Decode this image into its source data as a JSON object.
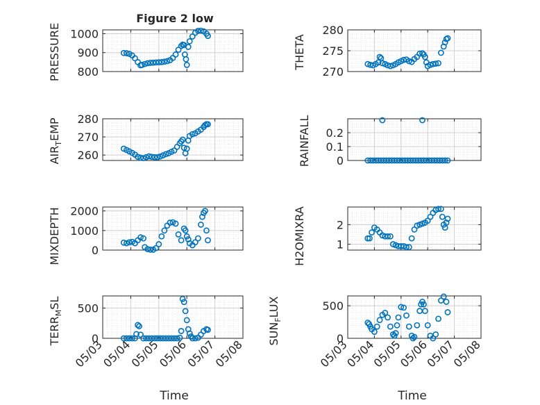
{
  "figure_title": "Figure 2 low",
  "xlabel": "Time",
  "x_tick_labels": [
    "05/03",
    "05/04",
    "05/05",
    "05/06",
    "05/07",
    "05/08"
  ],
  "colors": {
    "marker": "#0072BD",
    "axis": "#262626",
    "grid": "#dddddd"
  },
  "chart_data": [
    {
      "type": "scatter",
      "title": "Figure 2 low",
      "ylabel": "PRESSURE",
      "xlabel": "",
      "xlim": [
        0,
        5
      ],
      "ylim": [
        800,
        1020
      ],
      "yticks": [
        800,
        900,
        1000
      ],
      "grid": true,
      "minor_grid": true,
      "x": [
        0.75,
        0.85,
        0.95,
        1.05,
        1.15,
        1.25,
        1.35,
        1.4,
        1.5,
        1.6,
        1.7,
        1.8,
        1.9,
        2.0,
        2.1,
        2.2,
        2.3,
        2.4,
        2.5,
        2.6,
        2.7,
        2.8,
        2.85,
        2.9,
        2.93,
        2.97,
        3.0,
        3.05,
        3.1,
        3.2,
        3.3,
        3.4,
        3.5,
        3.6,
        3.7,
        3.75
      ],
      "y": [
        898,
        897,
        893,
        885,
        870,
        850,
        833,
        835,
        840,
        844,
        846,
        847,
        848,
        849,
        850,
        852,
        855,
        860,
        872,
        890,
        915,
        935,
        942,
        940,
        890,
        865,
        835,
        930,
        960,
        985,
        1005,
        1015,
        1016,
        1012,
        1000,
        988
      ]
    },
    {
      "type": "scatter",
      "title": "",
      "ylabel": "THETA",
      "xlabel": "",
      "xlim": [
        0,
        5
      ],
      "ylim": [
        270,
        280
      ],
      "yticks": [
        270,
        275,
        280
      ],
      "grid": true,
      "minor_grid": true,
      "x": [
        0.75,
        0.85,
        0.95,
        1.05,
        1.15,
        1.2,
        1.25,
        1.3,
        1.4,
        1.5,
        1.6,
        1.7,
        1.8,
        1.9,
        2.0,
        2.1,
        2.2,
        2.3,
        2.4,
        2.5,
        2.6,
        2.7,
        2.8,
        2.85,
        2.9,
        2.95,
        3.0,
        3.1,
        3.2,
        3.3,
        3.4,
        3.5,
        3.6,
        3.65,
        3.7,
        3.75
      ],
      "y": [
        271.8,
        271.6,
        271.5,
        271.8,
        272.2,
        273.5,
        273.2,
        272.0,
        271.8,
        271.5,
        271.3,
        271.5,
        271.8,
        272.2,
        272.5,
        272.8,
        272.9,
        272.5,
        272.3,
        273.0,
        273.5,
        274.3,
        274.4,
        274.1,
        273.5,
        272.2,
        271.3,
        271.6,
        271.8,
        271.9,
        272.0,
        274.5,
        276.0,
        277.0,
        277.8,
        278.0
      ]
    },
    {
      "type": "scatter",
      "title": "",
      "ylabel": "AIR_TEMP",
      "xlabel": "",
      "xlim": [
        0,
        5
      ],
      "ylim": [
        257,
        280
      ],
      "yticks": [
        260,
        270,
        280
      ],
      "grid": true,
      "minor_grid": true,
      "x": [
        0.75,
        0.85,
        0.95,
        1.05,
        1.15,
        1.25,
        1.35,
        1.45,
        1.55,
        1.65,
        1.75,
        1.85,
        1.95,
        2.05,
        2.15,
        2.25,
        2.35,
        2.45,
        2.55,
        2.65,
        2.75,
        2.8,
        2.85,
        2.9,
        2.95,
        3.0,
        3.05,
        3.1,
        3.2,
        3.3,
        3.4,
        3.5,
        3.6,
        3.65,
        3.7,
        3.75
      ],
      "y": [
        263.5,
        262.8,
        262.0,
        261.2,
        260.2,
        259.0,
        258.5,
        258.3,
        258.8,
        259.3,
        259.0,
        258.8,
        258.8,
        259.2,
        259.8,
        260.5,
        261.0,
        261.8,
        262.5,
        264.5,
        266.5,
        267.5,
        268.5,
        264.0,
        261.0,
        263.5,
        268.0,
        270.5,
        271.5,
        272.0,
        273.0,
        274.0,
        275.5,
        276.5,
        277.0,
        277.0
      ]
    },
    {
      "type": "scatter",
      "title": "",
      "ylabel": "RAINFALL",
      "xlabel": "",
      "xlim": [
        0,
        5
      ],
      "ylim": [
        0,
        0.3
      ],
      "yticks": [
        0,
        0.1,
        0.2
      ],
      "grid": true,
      "minor_grid": true,
      "x": [
        0.75,
        0.85,
        0.95,
        1.05,
        1.15,
        1.25,
        1.35,
        1.45,
        1.55,
        1.65,
        1.75,
        1.85,
        1.95,
        2.05,
        2.15,
        2.25,
        2.35,
        2.45,
        2.55,
        2.65,
        2.75,
        2.85,
        2.95,
        3.05,
        3.15,
        3.25,
        3.35,
        3.45,
        3.55,
        3.65,
        3.75,
        1.3,
        2.8
      ],
      "y": [
        0,
        0,
        0,
        0,
        0,
        0,
        0,
        0,
        0,
        0,
        0,
        0,
        0,
        0,
        0,
        0,
        0,
        0,
        0,
        0,
        0,
        0,
        0,
        0,
        0,
        0,
        0,
        0,
        0,
        0,
        0,
        0.29,
        0.29
      ]
    },
    {
      "type": "scatter",
      "title": "",
      "ylabel": "MIXDEPTH",
      "xlabel": "",
      "xlim": [
        0,
        5
      ],
      "ylim": [
        0,
        2200
      ],
      "yticks": [
        0,
        1000,
        2000
      ],
      "grid": true,
      "minor_grid": true,
      "x": [
        0.75,
        0.85,
        0.95,
        1.05,
        1.15,
        1.25,
        1.35,
        1.45,
        1.5,
        1.6,
        1.7,
        1.8,
        1.9,
        2.0,
        2.1,
        2.2,
        2.3,
        2.4,
        2.5,
        2.6,
        2.7,
        2.8,
        2.9,
        2.95,
        3.0,
        3.05,
        3.1,
        3.2,
        3.3,
        3.4,
        3.5,
        3.55,
        3.6,
        3.65,
        3.7,
        3.75
      ],
      "y": [
        380,
        350,
        400,
        420,
        350,
        500,
        650,
        600,
        150,
        50,
        20,
        20,
        100,
        300,
        700,
        1000,
        1250,
        1400,
        1420,
        1350,
        800,
        500,
        1100,
        1000,
        700,
        550,
        350,
        250,
        400,
        600,
        1300,
        1700,
        1900,
        2000,
        1000,
        500
      ]
    },
    {
      "type": "scatter",
      "title": "",
      "ylabel": "H2OMIXRA",
      "xlabel": "",
      "xlim": [
        0,
        5
      ],
      "ylim": [
        0.7,
        2.9
      ],
      "yticks": [
        1,
        2
      ],
      "grid": true,
      "minor_grid": true,
      "x": [
        0.75,
        0.82,
        0.9,
        1.0,
        1.1,
        1.2,
        1.3,
        1.4,
        1.5,
        1.6,
        1.7,
        1.8,
        1.9,
        2.0,
        2.1,
        2.2,
        2.3,
        2.4,
        2.5,
        2.6,
        2.7,
        2.8,
        2.9,
        3.0,
        3.1,
        3.2,
        3.3,
        3.4,
        3.5,
        3.55,
        3.6,
        3.65,
        3.7,
        3.75
      ],
      "y": [
        1.3,
        1.3,
        1.6,
        1.85,
        1.75,
        1.6,
        1.45,
        1.4,
        1.4,
        1.4,
        1.0,
        0.95,
        0.9,
        0.9,
        0.9,
        0.85,
        0.85,
        1.3,
        1.75,
        1.95,
        2.0,
        2.05,
        2.1,
        2.2,
        2.4,
        2.6,
        2.75,
        2.8,
        2.8,
        2.4,
        2.0,
        1.85,
        2.1,
        2.3
      ]
    },
    {
      "type": "scatter",
      "title": "",
      "ylabel": "TERR_MSL",
      "xlabel": "",
      "xlim": [
        0,
        5
      ],
      "ylim": [
        0,
        700
      ],
      "yticks": [
        0,
        500
      ],
      "grid": true,
      "minor_grid": true,
      "x": [
        0.75,
        0.85,
        0.95,
        1.05,
        1.15,
        1.2,
        1.25,
        1.3,
        1.35,
        1.45,
        1.55,
        1.65,
        1.75,
        1.85,
        1.95,
        2.05,
        2.15,
        2.25,
        2.35,
        2.45,
        2.55,
        2.65,
        2.75,
        2.8,
        2.85,
        2.9,
        2.95,
        3.0,
        3.05,
        3.1,
        3.15,
        3.2,
        3.3,
        3.4,
        3.5,
        3.6,
        3.7,
        3.75
      ],
      "y": [
        0,
        0,
        0,
        0,
        0,
        70,
        220,
        200,
        60,
        0,
        0,
        0,
        0,
        0,
        0,
        0,
        0,
        0,
        0,
        0,
        0,
        0,
        10,
        120,
        650,
        600,
        450,
        300,
        150,
        80,
        30,
        0,
        0,
        10,
        60,
        120,
        150,
        140
      ]
    },
    {
      "type": "scatter",
      "title": "",
      "ylabel": "SUN_FLUX",
      "xlabel": "",
      "xlim": [
        0,
        5
      ],
      "ylim": [
        0,
        650
      ],
      "yticks": [
        0,
        500
      ],
      "grid": true,
      "minor_grid": true,
      "x": [
        0.75,
        0.8,
        0.85,
        0.9,
        1.0,
        1.1,
        1.2,
        1.3,
        1.4,
        1.5,
        1.6,
        1.7,
        1.75,
        1.8,
        1.85,
        1.9,
        2.0,
        2.1,
        2.2,
        2.3,
        2.4,
        2.45,
        2.5,
        2.6,
        2.7,
        2.75,
        2.8,
        2.85,
        2.9,
        3.0,
        3.1,
        3.2,
        3.3,
        3.4,
        3.5,
        3.6,
        3.7,
        3.75
      ],
      "y": [
        240,
        220,
        180,
        140,
        100,
        180,
        280,
        360,
        390,
        320,
        180,
        60,
        40,
        80,
        200,
        320,
        480,
        470,
        350,
        180,
        40,
        0,
        20,
        200,
        420,
        520,
        560,
        520,
        420,
        200,
        40,
        0,
        60,
        300,
        580,
        640,
        560,
        400
      ]
    }
  ]
}
